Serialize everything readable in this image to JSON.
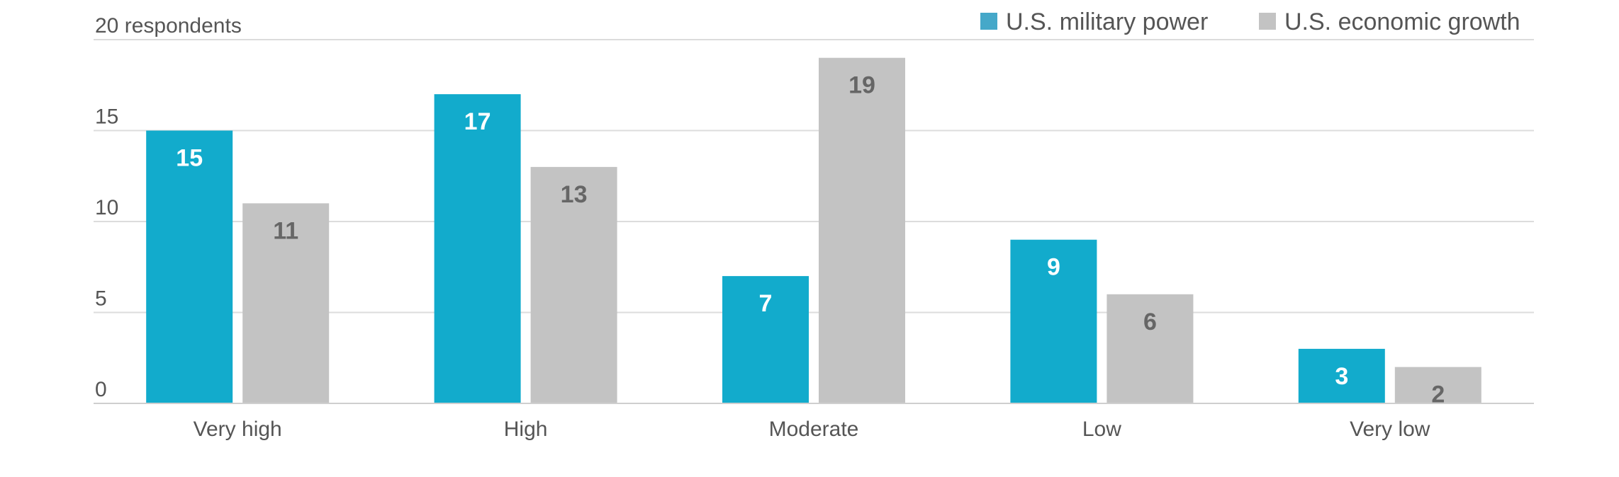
{
  "chart_data": {
    "type": "bar",
    "categories": [
      "Very high",
      "High",
      "Moderate",
      "Low",
      "Very low"
    ],
    "series": [
      {
        "name": "U.S. military power",
        "values": [
          15,
          17,
          7,
          9,
          3
        ],
        "color": "#12abcc",
        "label_color": "#ffffff"
      },
      {
        "name": "U.S. economic growth",
        "values": [
          11,
          13,
          19,
          6,
          2
        ],
        "color": "#c3c3c3",
        "label_color": "#666666"
      }
    ],
    "y_ticks": [
      {
        "value": 0,
        "label": "0"
      },
      {
        "value": 5,
        "label": "5"
      },
      {
        "value": 10,
        "label": "10"
      },
      {
        "value": 15,
        "label": "15"
      },
      {
        "value": 20,
        "label": "20 respondents"
      }
    ],
    "ylim": [
      0,
      20
    ],
    "title": "",
    "xlabel": "",
    "ylabel": "",
    "grid": true,
    "legend_position": "top-right",
    "colors": {
      "grid": "#dcdcdc",
      "axis": "#cfcfcf",
      "text": "#555555"
    }
  }
}
